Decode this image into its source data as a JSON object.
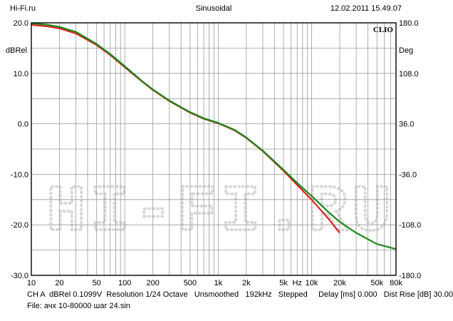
{
  "header": {
    "site": "Hi-Fi.ru",
    "mode": "Sinusoidal",
    "datetime": "12.02.2011 15.49.07"
  },
  "footer": {
    "line1": "CH A  dBRel 0.1099V  Resolution 1/24 Octave   Unsmoothed   192kHz   Stepped     Delay [ms] 0.000   Dist Rise [dB] 30.00",
    "line2": "File: ачх 10-80000 шаг 24.sin"
  },
  "chart_data": {
    "type": "line",
    "x_scale": "log",
    "xlim": [
      10,
      80000
    ],
    "ylim": [
      -30,
      20
    ],
    "y2lim": [
      -180,
      180
    ],
    "ylabel": "dBRel",
    "y2label": "Deg",
    "xunit": "Hz",
    "brand": "CLIO",
    "watermark": "HI-FI.RU",
    "grid": true,
    "x_ticks": [
      {
        "v": 10,
        "label": "10"
      },
      {
        "v": 20,
        "label": "20"
      },
      {
        "v": 50,
        "label": "50"
      },
      {
        "v": 100,
        "label": "100"
      },
      {
        "v": 200,
        "label": "200"
      },
      {
        "v": 500,
        "label": "500"
      },
      {
        "v": 1000,
        "label": "1k"
      },
      {
        "v": 2000,
        "label": "2k"
      },
      {
        "v": 5000,
        "label": "5k"
      },
      {
        "v": 10000,
        "label": "10k"
      },
      {
        "v": 20000,
        "label": "20k"
      },
      {
        "v": 50000,
        "label": "50k"
      },
      {
        "v": 80000,
        "label": "80k"
      }
    ],
    "y_ticks": [
      20.0,
      10.0,
      0.0,
      -10.0,
      -20.0,
      -30.0
    ],
    "y_tick_labels": [
      "20.0",
      "10.0",
      "0.0",
      "-10.0",
      "-20.0",
      "-30.0"
    ],
    "y2_ticks": [
      180.0,
      108.0,
      36.0,
      -36.0,
      -108.0,
      -180.0
    ],
    "y2_tick_labels": [
      "180.0",
      "108.0",
      "36.0",
      "-36.0",
      "-108.0",
      "-180.0"
    ],
    "series": [
      {
        "color": "#e02020",
        "x": [
          10,
          15,
          20,
          30,
          50,
          70,
          100,
          150,
          200,
          300,
          500,
          700,
          1000,
          1500,
          2000,
          3000,
          5000,
          7000,
          10000,
          15000,
          20000
        ],
        "y": [
          19.6,
          19.3,
          18.9,
          17.9,
          15.6,
          13.6,
          11.2,
          8.5,
          6.7,
          4.5,
          2.2,
          1.0,
          0.1,
          -1.3,
          -2.8,
          -5.4,
          -9.3,
          -12.1,
          -15.0,
          -18.7,
          -21.6
        ]
      },
      {
        "color": "#1a8a1a",
        "x": [
          10,
          15,
          20,
          30,
          50,
          70,
          100,
          150,
          200,
          300,
          500,
          700,
          1000,
          1500,
          2000,
          3000,
          5000,
          7000,
          10000,
          15000,
          20000,
          30000,
          50000,
          80000
        ],
        "y": [
          19.9,
          19.6,
          19.2,
          18.2,
          15.8,
          13.8,
          11.4,
          8.6,
          6.8,
          4.6,
          2.3,
          1.1,
          0.2,
          -1.2,
          -2.7,
          -5.3,
          -9.1,
          -11.7,
          -14.3,
          -17.4,
          -19.4,
          -21.6,
          -23.8,
          -24.8
        ]
      }
    ]
  },
  "colors": {
    "grid": "#9a9a9a",
    "frame": "#000000"
  }
}
